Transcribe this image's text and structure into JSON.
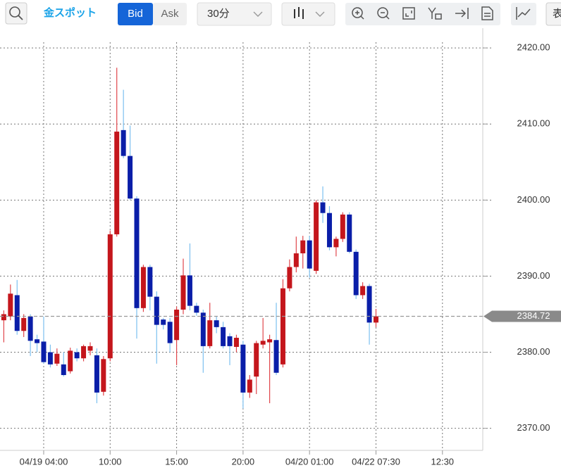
{
  "toolbar": {
    "instrument": "金スポット",
    "bid": "Bid",
    "ask": "Ask",
    "interval": "30分",
    "table": "表"
  },
  "chart_data": {
    "type": "candlestick",
    "categories": [
      null,
      null,
      null,
      null,
      null,
      null,
      "04/19 04:00",
      null,
      null,
      null,
      null,
      null,
      null,
      null,
      null,
      null,
      "10:00",
      null,
      null,
      null,
      null,
      null,
      null,
      null,
      null,
      null,
      "15:00",
      null,
      null,
      null,
      null,
      null,
      null,
      null,
      null,
      null,
      "20:00",
      null,
      null,
      null,
      null,
      null,
      null,
      null,
      null,
      null,
      "04/20 01:00",
      null,
      null,
      null,
      null,
      null,
      null,
      null,
      null,
      null,
      "04/22 07:30",
      null,
      null,
      null,
      null,
      null,
      null,
      null,
      null,
      null,
      "12:30"
    ],
    "open": [
      2384.2,
      2384.7,
      2387.5,
      2382.8,
      2384.7,
      2381.7,
      2381.4,
      2380,
      2378.5,
      2378.4,
      2377.5,
      2380,
      2379.2,
      2380.2,
      2379.6,
      2374.8,
      2379.2,
      2395.5,
      2409.2,
      2405.8,
      2400.2,
      2385.8,
      2391.2,
      2387.3,
      2384.3,
      2384,
      2381.6,
      2385.6,
      2390.1,
      2386.1,
      2385.2,
      2380.8,
      2384.2,
      2383.3,
      2382.1,
      2380.7,
      2381,
      2374.7,
      2376.8,
      2381,
      2381.3,
      2381.6,
      2378.4,
      2388.4,
      2391.2,
      2393,
      2394.7,
      2390.7,
      2399.7,
      2398.3,
      2393.8,
      2394.9,
      2398.1,
      2393.2,
      2387.5,
      2388.7,
      2383.9,
      null,
      null,
      null,
      null,
      null,
      null,
      null,
      null,
      null,
      null
    ],
    "high": [
      2385.5,
      2388.9,
      2389.5,
      2385,
      2385,
      2382.3,
      2384.7,
      2381,
      2380.5,
      2380,
      2380.6,
      2380.5,
      2381,
      2381.3,
      2380.5,
      2379.5,
      2396,
      2417.4,
      2414.5,
      2409.8,
      2400.5,
      2391.5,
      2391.5,
      2388,
      2384.5,
      2384.5,
      2386,
      2392.3,
      2394.3,
      2386.5,
      2385.6,
      2386.5,
      2384.7,
      2384,
      2382.5,
      2382.3,
      2381.5,
      2377,
      2381.5,
      2384.5,
      2382.3,
      2386.5,
      2389.6,
      2392.2,
      2395.2,
      2395.3,
      2395.3,
      2400,
      2401.8,
      2399.2,
      2395.2,
      2398.4,
      2398.4,
      2393.5,
      2389.2,
      2389,
      2385.7,
      null,
      null,
      null,
      null,
      null,
      null,
      null,
      null,
      null,
      null
    ],
    "low": [
      2381.3,
      2384.2,
      2382.3,
      2382,
      2379.5,
      2380,
      2378.5,
      2378,
      2378.2,
      2376.8,
      2377.2,
      2378.8,
      2378.8,
      2379.6,
      2373.3,
      2374.3,
      2378.8,
      2395.2,
      2405.5,
      2400,
      2381.8,
      2385.3,
      2385.5,
      2378.5,
      2383,
      2380,
      2378.3,
      2385,
      2385.5,
      2384.8,
      2377.3,
      2380.5,
      2382.5,
      2380.5,
      2378.3,
      2380,
      2372.6,
      2374,
      2374.5,
      2380.5,
      2373.3,
      2377,
      2378,
      2388,
      2390.5,
      2391,
      2389.8,
      2390.3,
      2397,
      2393.4,
      2392.6,
      2394.5,
      2393,
      2387,
      2387,
      2381,
      2383.3,
      null,
      null,
      null,
      null,
      null,
      null,
      null,
      null,
      null,
      null
    ],
    "close": [
      2385.0,
      2387.7,
      2382.8,
      2384.5,
      2381.5,
      2381.2,
      2378.7,
      2378.4,
      2379.8,
      2377.0,
      2380.2,
      2379.2,
      2380.8,
      2380.8,
      2374.7,
      2379.1,
      2395.5,
      2409,
      2405.8,
      2400.2,
      2385.8,
      2391.2,
      2387.3,
      2383.6,
      2383.6,
      2381.2,
      2385.6,
      2390.1,
      2386.1,
      2385.2,
      2380.8,
      2384.2,
      2383.3,
      2380.8,
      2380.8,
      2381.9,
      2374.7,
      2376.4,
      2381.2,
      2381.5,
      2381.7,
      2377.3,
      2388.4,
      2391.2,
      2393,
      2394.7,
      2391,
      2399.7,
      2398.3,
      2393.8,
      2394.9,
      2398.1,
      2393.2,
      2387.5,
      2388.7,
      2383.9,
      2384.72,
      null,
      null,
      null,
      null,
      null,
      null,
      null,
      null,
      null,
      null
    ],
    "up_color": "#c4161c",
    "down_color": "#0a1ea8",
    "up_wick_color": "#e0474c",
    "down_wick_color": "#7cc0f0",
    "last_price": 2384.72,
    "ylim": [
      2367.1,
      2422.6
    ],
    "yticks": [
      {
        "value": 2370,
        "label": "2370.00"
      },
      {
        "value": 2380,
        "label": "2380.00"
      },
      {
        "value": 2390,
        "label": "2390.00"
      },
      {
        "value": 2400,
        "label": "2400.00"
      },
      {
        "value": 2410,
        "label": "2410.00"
      },
      {
        "value": 2420,
        "label": "2420.00"
      }
    ],
    "grid": true
  }
}
